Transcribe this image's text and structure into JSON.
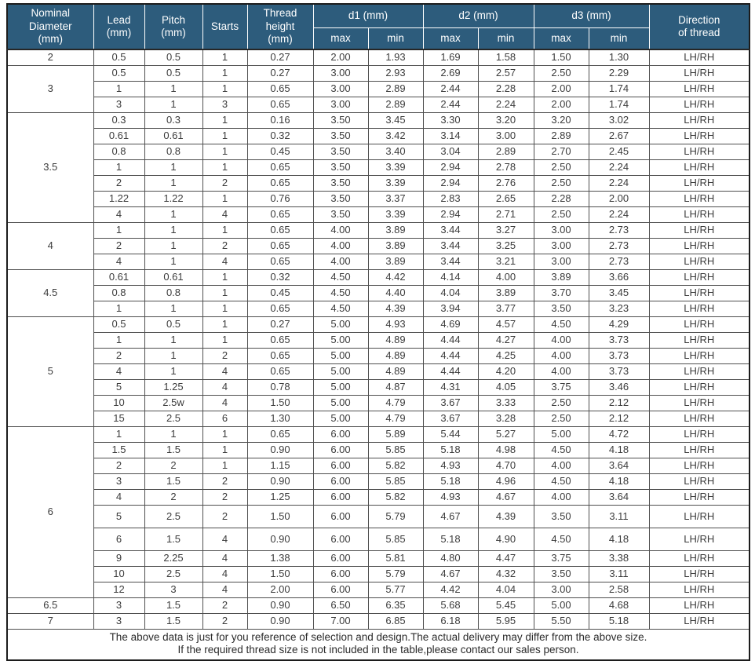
{
  "colors": {
    "header_bg": "#2d5c7c",
    "header_text": "#ffffff",
    "body_text": "#3c3c3c"
  },
  "table": {
    "header": {
      "nominal": "Nominal\nDiameter\n(mm)",
      "lead": "Lead\n(mm)",
      "pitch": "Pitch\n(mm)",
      "starts": "Starts",
      "thread_height": "Thread\nheight\n(mm)",
      "d1": "d1  (mm)",
      "d2": "d2  (mm)",
      "d3": "d3  (mm)",
      "direction": "Direction\nof thread",
      "max": "max",
      "min": "min"
    },
    "row_fields": [
      "lead",
      "pitch",
      "starts",
      "thread_height",
      "d1_max",
      "d1_min",
      "d2_max",
      "d2_min",
      "d3_max",
      "d3_min",
      "direction"
    ],
    "groups": [
      {
        "nominal": "2",
        "rows": [
          [
            "0.5",
            "0.5",
            "1",
            "0.27",
            "2.00",
            "1.93",
            "1.69",
            "1.58",
            "1.50",
            "1.30",
            "LH/RH"
          ]
        ]
      },
      {
        "nominal": "3",
        "rows": [
          [
            "0.5",
            "0.5",
            "1",
            "0.27",
            "3.00",
            "2.93",
            "2.69",
            "2.57",
            "2.50",
            "2.29",
            "LH/RH"
          ],
          [
            "1",
            "1",
            "1",
            "0.65",
            "3.00",
            "2.89",
            "2.44",
            "2.28",
            "2.00",
            "1.74",
            "LH/RH"
          ],
          [
            "3",
            "1",
            "3",
            "0.65",
            "3.00",
            "2.89",
            "2.44",
            "2.24",
            "2.00",
            "1.74",
            "LH/RH"
          ]
        ]
      },
      {
        "nominal": "3.5",
        "rows": [
          [
            "0.3",
            "0.3",
            "1",
            "0.16",
            "3.50",
            "3.45",
            "3.30",
            "3.20",
            "3.20",
            "3.02",
            "LH/RH"
          ],
          [
            "0.61",
            "0.61",
            "1",
            "0.32",
            "3.50",
            "3.42",
            "3.14",
            "3.00",
            "2.89",
            "2.67",
            "LH/RH"
          ],
          [
            "0.8",
            "0.8",
            "1",
            "0.45",
            "3.50",
            "3.40",
            "3.04",
            "2.89",
            "2.70",
            "2.45",
            "LH/RH"
          ],
          [
            "1",
            "1",
            "1",
            "0.65",
            "3.50",
            "3.39",
            "2.94",
            "2.78",
            "2.50",
            "2.24",
            "LH/RH"
          ],
          [
            "2",
            "1",
            "2",
            "0.65",
            "3.50",
            "3.39",
            "2.94",
            "2.76",
            "2.50",
            "2.24",
            "LH/RH"
          ],
          [
            "1.22",
            "1.22",
            "1",
            "0.76",
            "3.50",
            "3.37",
            "2.83",
            "2.65",
            "2.28",
            "2.00",
            "LH/RH"
          ],
          [
            "4",
            "1",
            "4",
            "0.65",
            "3.50",
            "3.39",
            "2.94",
            "2.71",
            "2.50",
            "2.24",
            "LH/RH"
          ]
        ]
      },
      {
        "nominal": "4",
        "rows": [
          [
            "1",
            "1",
            "1",
            "0.65",
            "4.00",
            "3.89",
            "3.44",
            "3.27",
            "3.00",
            "2.73",
            "LH/RH"
          ],
          [
            "2",
            "1",
            "2",
            "0.65",
            "4.00",
            "3.89",
            "3.44",
            "3.25",
            "3.00",
            "2.73",
            "LH/RH"
          ],
          [
            "4",
            "1",
            "4",
            "0.65",
            "4.00",
            "3.89",
            "3.44",
            "3.21",
            "3.00",
            "2.73",
            "LH/RH"
          ]
        ]
      },
      {
        "nominal": "4.5",
        "rows": [
          [
            "0.61",
            "0.61",
            "1",
            "0.32",
            "4.50",
            "4.42",
            "4.14",
            "4.00",
            "3.89",
            "3.66",
            "LH/RH"
          ],
          [
            "0.8",
            "0.8",
            "1",
            "0.45",
            "4.50",
            "4.40",
            "4.04",
            "3.89",
            "3.70",
            "3.45",
            "LH/RH"
          ],
          [
            "1",
            "1",
            "1",
            "0.65",
            "4.50",
            "4.39",
            "3.94",
            "3.77",
            "3.50",
            "3.23",
            "LH/RH"
          ]
        ]
      },
      {
        "nominal": "5",
        "rows": [
          [
            "0.5",
            "0.5",
            "1",
            "0.27",
            "5.00",
            "4.93",
            "4.69",
            "4.57",
            "4.50",
            "4.29",
            "LH/RH"
          ],
          [
            "1",
            "1",
            "1",
            "0.65",
            "5.00",
            "4.89",
            "4.44",
            "4.27",
            "4.00",
            "3.73",
            "LH/RH"
          ],
          [
            "2",
            "1",
            "2",
            "0.65",
            "5.00",
            "4.89",
            "4.44",
            "4.25",
            "4.00",
            "3.73",
            "LH/RH"
          ],
          [
            "4",
            "1",
            "4",
            "0.65",
            "5.00",
            "4.89",
            "4.44",
            "4.20",
            "4.00",
            "3.73",
            "LH/RH"
          ],
          [
            "5",
            "1.25",
            "4",
            "0.78",
            "5.00",
            "4.87",
            "4.31",
            "4.05",
            "3.75",
            "3.46",
            "LH/RH"
          ],
          [
            "10",
            "2.5w",
            "4",
            "1.50",
            "5.00",
            "4.79",
            "3.67",
            "3.33",
            "2.50",
            "2.12",
            "LH/RH"
          ],
          [
            "15",
            "2.5",
            "6",
            "1.30",
            "5.00",
            "4.79",
            "3.67",
            "3.28",
            "2.50",
            "2.12",
            "LH/RH"
          ]
        ]
      },
      {
        "nominal": "6",
        "rows": [
          [
            "1",
            "1",
            "1",
            "0.65",
            "6.00",
            "5.89",
            "5.44",
            "5.27",
            "5.00",
            "4.72",
            "LH/RH"
          ],
          [
            "1.5",
            "1.5",
            "1",
            "0.90",
            "6.00",
            "5.85",
            "5.18",
            "4.98",
            "4.50",
            "4.18",
            "LH/RH"
          ],
          [
            "2",
            "2",
            "1",
            "1.15",
            "6.00",
            "5.82",
            "4.93",
            "4.70",
            "4.00",
            "3.64",
            "LH/RH"
          ],
          [
            "3",
            "1.5",
            "2",
            "0.90",
            "6.00",
            "5.85",
            "5.18",
            "4.96",
            "4.50",
            "4.18",
            "LH/RH"
          ],
          [
            "4",
            "2",
            "2",
            "1.25",
            "6.00",
            "5.82",
            "4.93",
            "4.67",
            "4.00",
            "3.64",
            "LH/RH"
          ],
          [
            "5",
            "2.5",
            "2",
            "1.50",
            "6.00",
            "5.79",
            "4.67",
            "4.39",
            "3.50",
            "3.11",
            "LH/RH"
          ],
          [
            "6",
            "1.5",
            "4",
            "0.90",
            "6.00",
            "5.85",
            "5.18",
            "4.90",
            "4.50",
            "4.18",
            "LH/RH"
          ],
          [
            "9",
            "2.25",
            "4",
            "1.38",
            "6.00",
            "5.81",
            "4.80",
            "4.47",
            "3.75",
            "3.38",
            "LH/RH"
          ],
          [
            "10",
            "2.5",
            "4",
            "1.50",
            "6.00",
            "5.79",
            "4.67",
            "4.32",
            "3.50",
            "3.11",
            "LH/RH"
          ],
          [
            "12",
            "3",
            "4",
            "2.00",
            "6.00",
            "5.77",
            "4.42",
            "4.04",
            "3.00",
            "2.58",
            "LH/RH"
          ]
        ]
      },
      {
        "nominal": "6.5",
        "rows": [
          [
            "3",
            "1.5",
            "2",
            "0.90",
            "6.50",
            "6.35",
            "5.68",
            "5.45",
            "5.00",
            "4.68",
            "LH/RH"
          ]
        ]
      },
      {
        "nominal": "7",
        "rows": [
          [
            "3",
            "1.5",
            "2",
            "0.90",
            "7.00",
            "6.85",
            "6.18",
            "5.95",
            "5.50",
            "5.18",
            "LH/RH"
          ]
        ]
      }
    ],
    "footer": {
      "line1": "The above data is just for you reference of selection and design.The actual delivery may differ from the above size.",
      "line2": "If the required thread size is not included in the table,please contact our sales person."
    }
  }
}
